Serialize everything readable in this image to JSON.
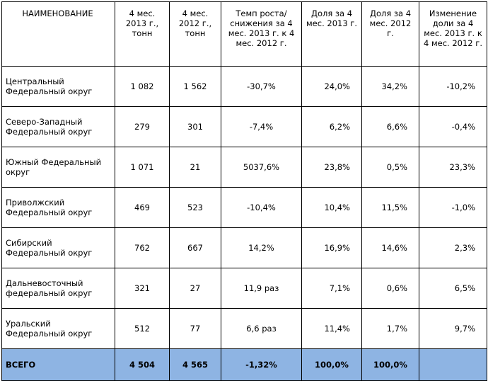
{
  "table": {
    "headers": [
      "НАИМЕНОВАНИЕ",
      "4 мес. 2013 г., тонн",
      "4 мес. 2012 г., тонн",
      "Темп роста/ снижения за 4 мес. 2013 г. к 4 мес. 2012 г.",
      "Доля за 4 мес. 2013 г.",
      "Доля за 4 мес. 2012 г.",
      "Изменение доли за 4 мес. 2013 г. к 4 мес. 2012 г."
    ],
    "rows": [
      [
        "Центральный Федеральный округ",
        "1 082",
        "1 562",
        "-30,7%",
        "24,0%",
        "34,2%",
        "-10,2%"
      ],
      [
        "Северо-Западный Федеральный округ",
        "279",
        "301",
        "-7,4%",
        "6,2%",
        "6,6%",
        "-0,4%"
      ],
      [
        "Южный Федеральный округ",
        "1 071",
        "21",
        "5037,6%",
        "23,8%",
        "0,5%",
        "23,3%"
      ],
      [
        "Приволжский Федеральный округ",
        "469",
        "523",
        "-10,4%",
        "10,4%",
        "11,5%",
        "-1,0%"
      ],
      [
        "Сибирский Федеральный округ",
        "762",
        "667",
        "14,2%",
        "16,9%",
        "14,6%",
        "2,3%"
      ],
      [
        "Дальневосточный федеральный округ",
        "321",
        "27",
        "11,9 раз",
        "7,1%",
        "0,6%",
        "6,5%"
      ],
      [
        "Уральский Федеральный округ",
        "512",
        "77",
        "6,6 раз",
        "11,4%",
        "1,7%",
        "9,7%"
      ]
    ],
    "total": [
      "ВСЕГО",
      "4 504",
      "4 565",
      "-1,32%",
      "100,0%",
      "100,0%",
      ""
    ],
    "total_color": "#8eb4e3"
  }
}
